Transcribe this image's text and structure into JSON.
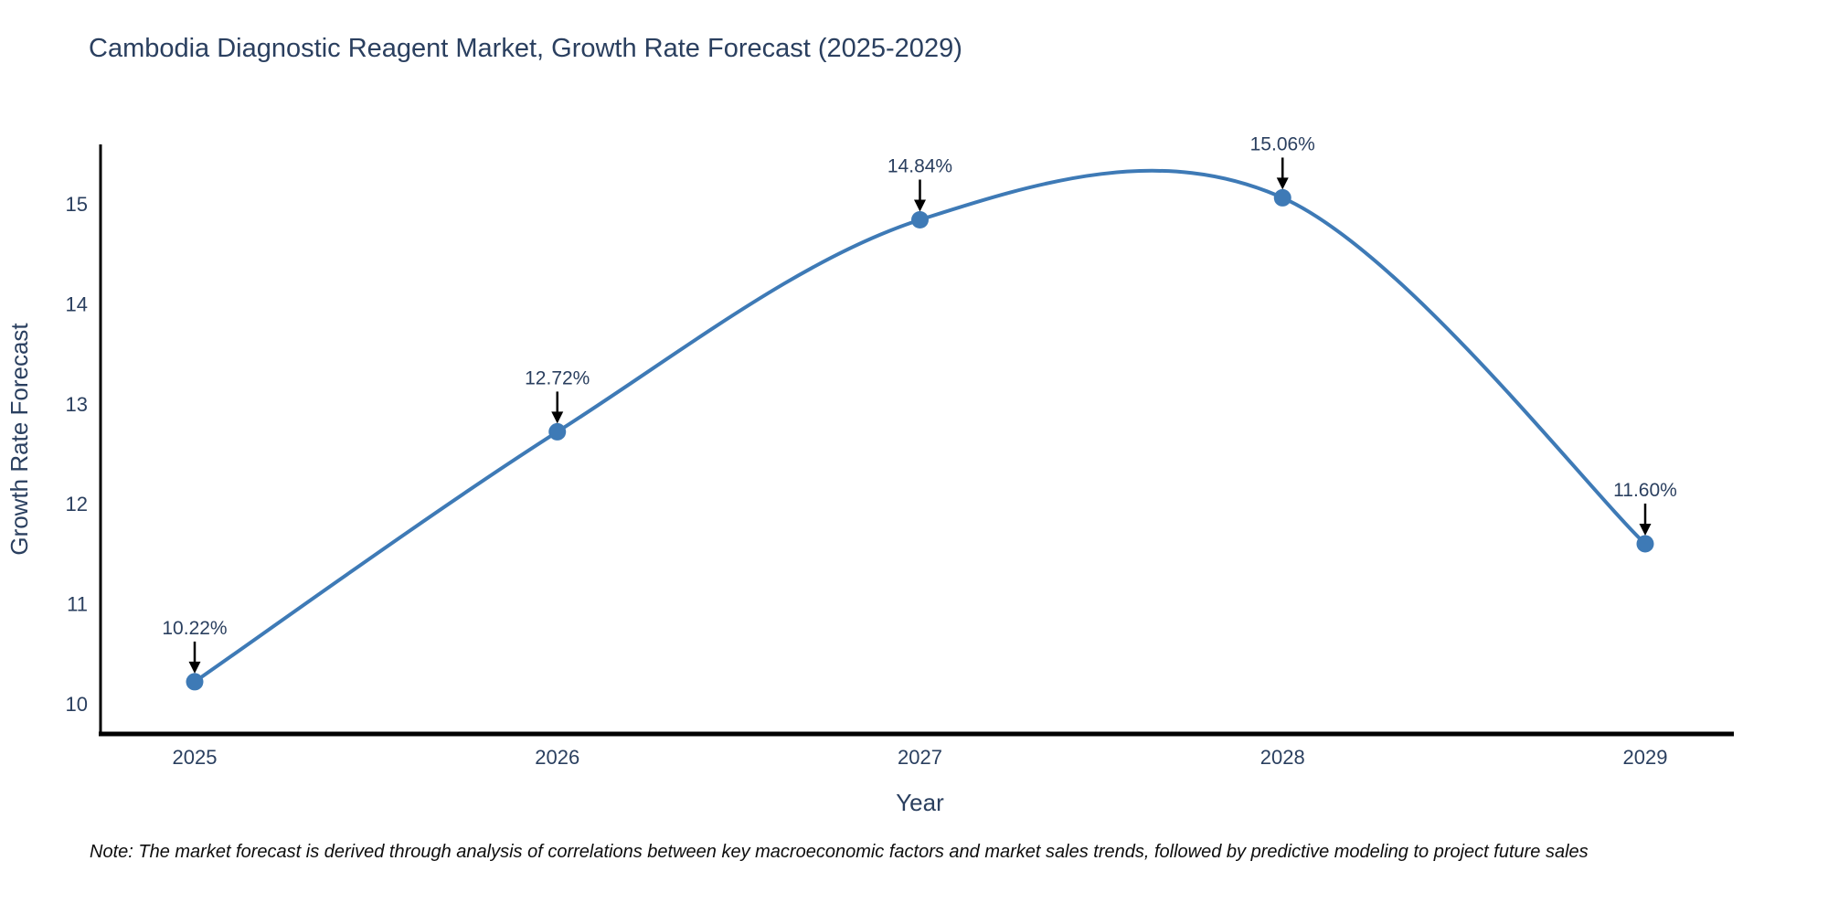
{
  "chart_data": {
    "type": "line",
    "line_shape": "spline",
    "title": "Cambodia Diagnostic Reagent Market, Growth Rate Forecast (2025-2029)",
    "xlabel": "Year",
    "ylabel": "Growth Rate Forecast",
    "x": [
      2025,
      2026,
      2027,
      2028,
      2029
    ],
    "values": [
      10.22,
      12.72,
      14.84,
      15.06,
      11.6
    ],
    "point_labels": [
      "10.22%",
      "12.72%",
      "14.84%",
      "15.06%",
      "11.60%"
    ],
    "xticks": [
      "2025",
      "2026",
      "2027",
      "2028",
      "2029"
    ],
    "yticks": [
      10,
      11,
      12,
      13,
      14,
      15
    ],
    "ylim": [
      9.7,
      15.6
    ],
    "xlim": [
      2024.74,
      2029.26
    ],
    "grid": false,
    "legend_position": "none",
    "colors": {
      "line": "#3E7AB6",
      "marker": "#3E7AB6",
      "annotation_text": "#2a3f5f",
      "annotation_arrow": "#000000",
      "axis_line": "#000000",
      "tick_text": "#2a3f5f",
      "title_text": "#2a3f5f",
      "background": "#ffffff"
    }
  },
  "note": "Note: The market forecast is derived through analysis of correlations between key macroeconomic factors and market sales trends, followed by predictive modeling to project future sales"
}
